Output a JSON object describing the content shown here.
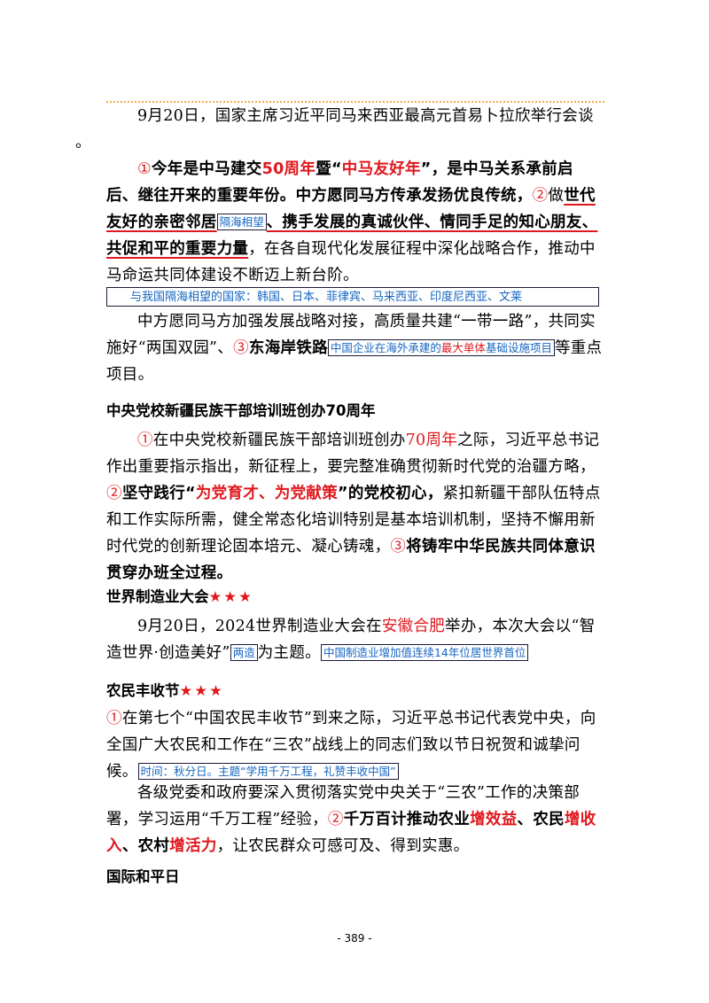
{
  "p1": {
    "text": "9月20日，国家主席习近平同马来西亚最高元首易卜拉欣举行会谈",
    "tail": "。"
  },
  "p2": {
    "n1": "①",
    "a": "今年是中马建交",
    "b": "50周年",
    "c": "暨“",
    "d": "中马友好年",
    "e": "”，是中马关系承前启后、继往开来的重要年份。中方愿同马方传承发扬优良传统，",
    "n2": "②",
    "f": "做",
    "g": "世代友好的亲密邻居",
    "box": "隔海相望",
    "h": "、携手发展的真诚伙伴、情同手足的知心朋友、共促和平的重要力量",
    "i": "，在各自现代化发展征程中深化战略合作，推动中马命运共同体建设不断迈上新台阶。"
  },
  "note1": "与我国隔海相望的国家：韩国、日本、菲律宾、马来西亚、印度尼西亚、文莱",
  "p3": {
    "a": "中方愿同马方加强发展战略对接，高质量共建“一带一路”，共同实施好“两国双园”、",
    "n3": "③",
    "b": "东海岸铁路",
    "box_a": "中国企业在海外承建的",
    "box_b": "最大单体",
    "box_c": "基础设施项目",
    "c": "等重点项目。"
  },
  "h1": "中央党校新疆民族干部培训班创办70周年",
  "p4": {
    "n1": "①",
    "a": "在中央党校新疆民族干部培训班创办",
    "b": "70周年",
    "c": "之际，习近平总书记作出重要指示指出，新征程上，要完整准确贯彻新时代党的治疆方略，",
    "n2": "②",
    "d": "坚守践行“",
    "e": "为党育才、为党献策",
    "f": "”的党校初心，",
    "g": "紧扣新疆干部队伍特点和工作实际所需，健全常态化培训特别是基本培训机制，坚持不懈用新时代党的创新理论固本培元、凝心铸魂，",
    "n3": "③",
    "h": "将铸牢中华民族共同体意识贯穿办班全过程。"
  },
  "h2": {
    "text": "世界制造业大会",
    "stars": "★★★"
  },
  "p5": {
    "a": "9月20日，2024世界制造业大会在",
    "b": "安徽合肥",
    "c": "举办，本次大会以“智造世界·创造美好”",
    "box1": "两造",
    "d": "为主题。",
    "box2": "中国制造业增加值连续14年位居世界首位"
  },
  "h3": {
    "text": "农民丰收节",
    "stars": "★★★"
  },
  "p6": {
    "n1": "①",
    "a": "在第七个“中国农民丰收节”到来之际，习近平总书记代表党中央，向全国广大农民和工作在“三农”战线上的同志们致以节日祝贺和诚挚问候。",
    "box": "时间：秋分日。主题“学用千万工程，礼赞丰收中国”"
  },
  "p7": {
    "a": "各级党委和政府要深入贯彻落实党中央关于“三农”工作的决策部署，学习运用“千万工程”经验，",
    "n2": "②",
    "b": "千万百计推动农业",
    "c": "增效益",
    "d": "、农民",
    "e": "增收入",
    "f": "、农村",
    "g": "增活力",
    "h": "，让农民群众可感可及、得到实惠。"
  },
  "h4": "国际和平日",
  "page_number": "- 389 -",
  "colors": {
    "accent_red": "#e0181e",
    "note_blue": "#1565c0",
    "dotted_rule": "#f0a848"
  }
}
